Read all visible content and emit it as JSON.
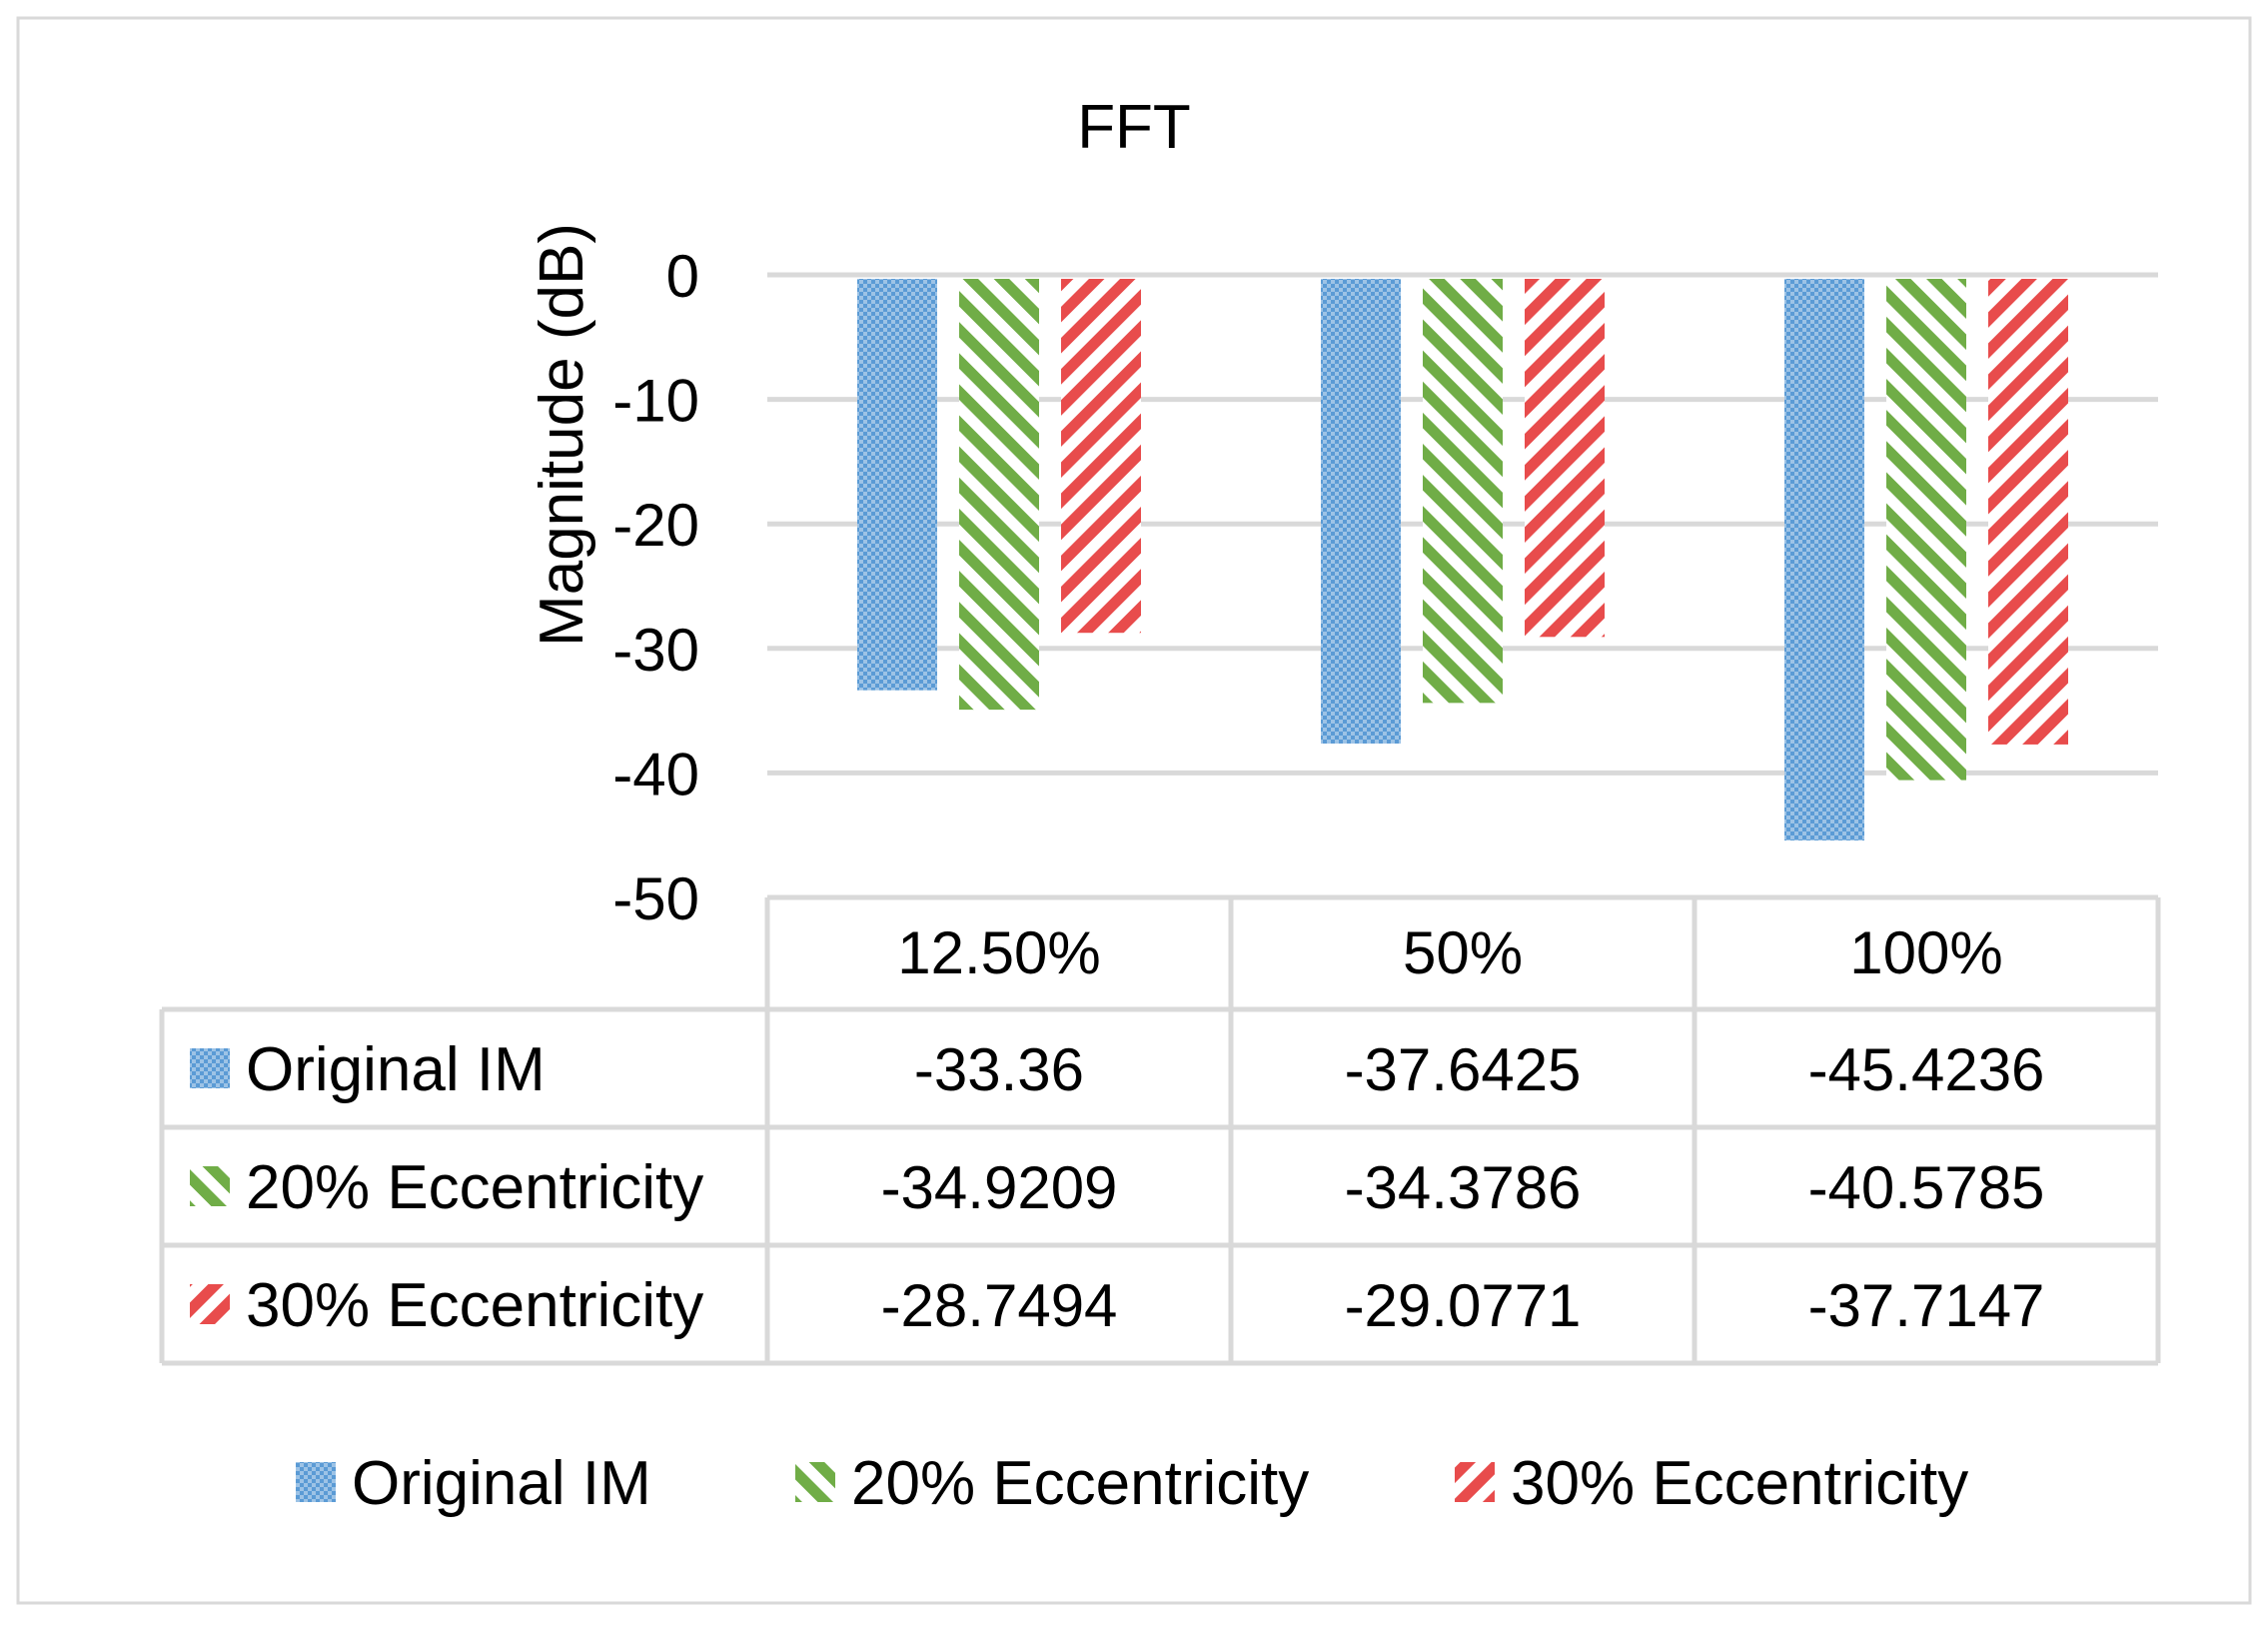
{
  "chart_data": {
    "type": "bar",
    "title": "FFT",
    "xlabel": "",
    "ylabel": "Magnitude (dB)",
    "ylim": [
      -50,
      0
    ],
    "yticks": [
      0,
      -10,
      -20,
      -30,
      -40,
      -50
    ],
    "categories": [
      "12.50%",
      "50%",
      "100%"
    ],
    "series": [
      {
        "name": "Original IM",
        "values": [
          -33.36,
          -37.6425,
          -45.4236
        ],
        "labels": [
          "-33.36",
          "-37.6425",
          "-45.4236"
        ],
        "color": "#5b9bd5",
        "pattern": "checker"
      },
      {
        "name": "20% Eccentricity",
        "values": [
          -34.9209,
          -34.3786,
          -40.5785
        ],
        "labels": [
          "-34.9209",
          "-34.3786",
          "-40.5785"
        ],
        "color": "#70ad47",
        "pattern": "diag-back"
      },
      {
        "name": "30% Eccentricity",
        "values": [
          -28.7494,
          -29.0771,
          -37.7147
        ],
        "labels": [
          "-28.7494",
          "-29.0771",
          "-37.7147"
        ],
        "color": "#e84c4c",
        "pattern": "diag-fwd"
      }
    ],
    "legend_position": "bottom",
    "data_table": true,
    "grid": true
  }
}
